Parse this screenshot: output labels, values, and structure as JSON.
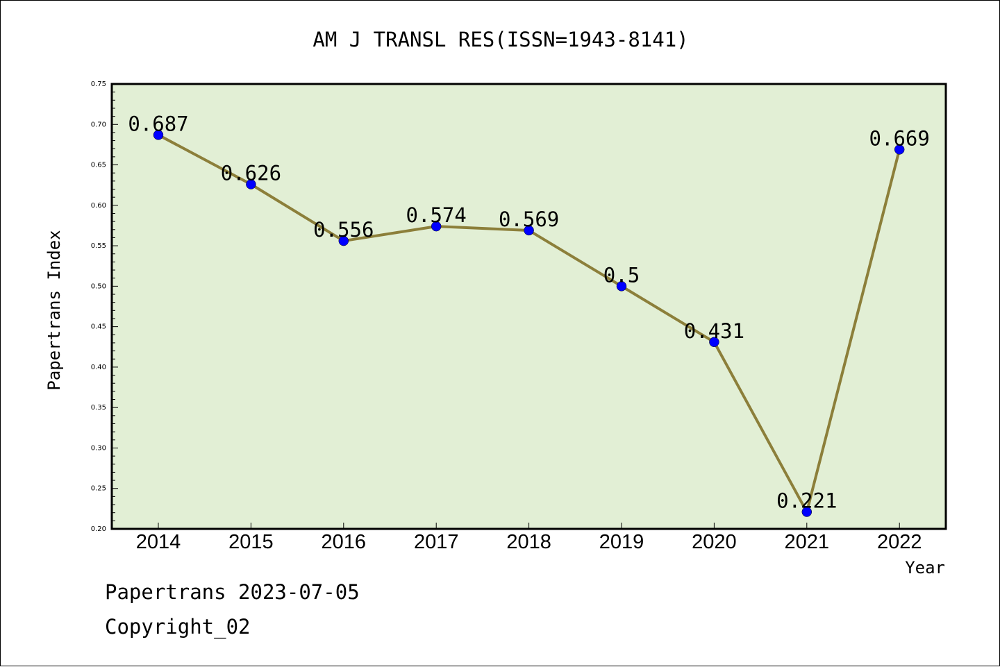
{
  "chart_data": {
    "type": "line",
    "title": "AM J TRANSL RES(ISSN=1943-8141)",
    "xlabel": "Year",
    "ylabel": "Papertrans Index",
    "categories": [
      "2014",
      "2015",
      "2016",
      "2017",
      "2018",
      "2019",
      "2020",
      "2021",
      "2022"
    ],
    "series": [
      {
        "values": [
          0.687,
          0.626,
          0.556,
          0.574,
          0.569,
          0.5,
          0.431,
          0.221,
          0.669
        ],
        "data_labels": [
          "0.687",
          "0.626",
          "0.556",
          "0.574",
          "0.569",
          "0.5",
          "0.431",
          "0.221",
          "0.669"
        ]
      }
    ],
    "ylim": [
      0.2,
      0.75
    ],
    "yticks": [
      "0.20",
      "0.25",
      "0.30",
      "0.35",
      "0.40",
      "0.45",
      "0.50",
      "0.55",
      "0.60",
      "0.65",
      "0.70",
      "0.75"
    ],
    "grid": false,
    "colors": {
      "plot_background": "#e2efd5",
      "line": "#8c7f3a",
      "marker": "#0000ff"
    }
  },
  "footer": {
    "source": "Papertrans 2023-07-05",
    "copyright": "Copyright_02"
  }
}
